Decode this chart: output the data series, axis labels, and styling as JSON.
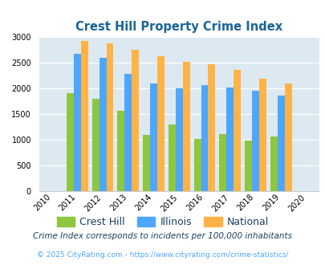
{
  "title": "Crest Hill Property Crime Index",
  "plot_years": [
    2011,
    2012,
    2013,
    2014,
    2015,
    2016,
    2017,
    2018,
    2019
  ],
  "all_xtick_years": [
    2010,
    2011,
    2012,
    2013,
    2014,
    2015,
    2016,
    2017,
    2018,
    2019,
    2020
  ],
  "crest_hill": [
    1900,
    1800,
    1560,
    1090,
    1300,
    1020,
    1110,
    985,
    1065
  ],
  "illinois": [
    2670,
    2590,
    2280,
    2090,
    2000,
    2060,
    2020,
    1950,
    1860
  ],
  "national": [
    2920,
    2870,
    2750,
    2620,
    2510,
    2470,
    2360,
    2190,
    2100
  ],
  "crest_hill_color": "#8dc63f",
  "illinois_color": "#4da6ff",
  "national_color": "#ffb347",
  "bg_color": "#dce9f0",
  "ylim": [
    0,
    3000
  ],
  "yticks": [
    0,
    500,
    1000,
    1500,
    2000,
    2500,
    3000
  ],
  "footnote1": "Crime Index corresponds to incidents per 100,000 inhabitants",
  "footnote2": "© 2025 CityRating.com - https://www.cityrating.com/crime-statistics/",
  "title_color": "#1a6496",
  "footnote1_color": "#1a4060",
  "footnote2_color": "#4da6ff",
  "legend_text_color": "#1a4060"
}
